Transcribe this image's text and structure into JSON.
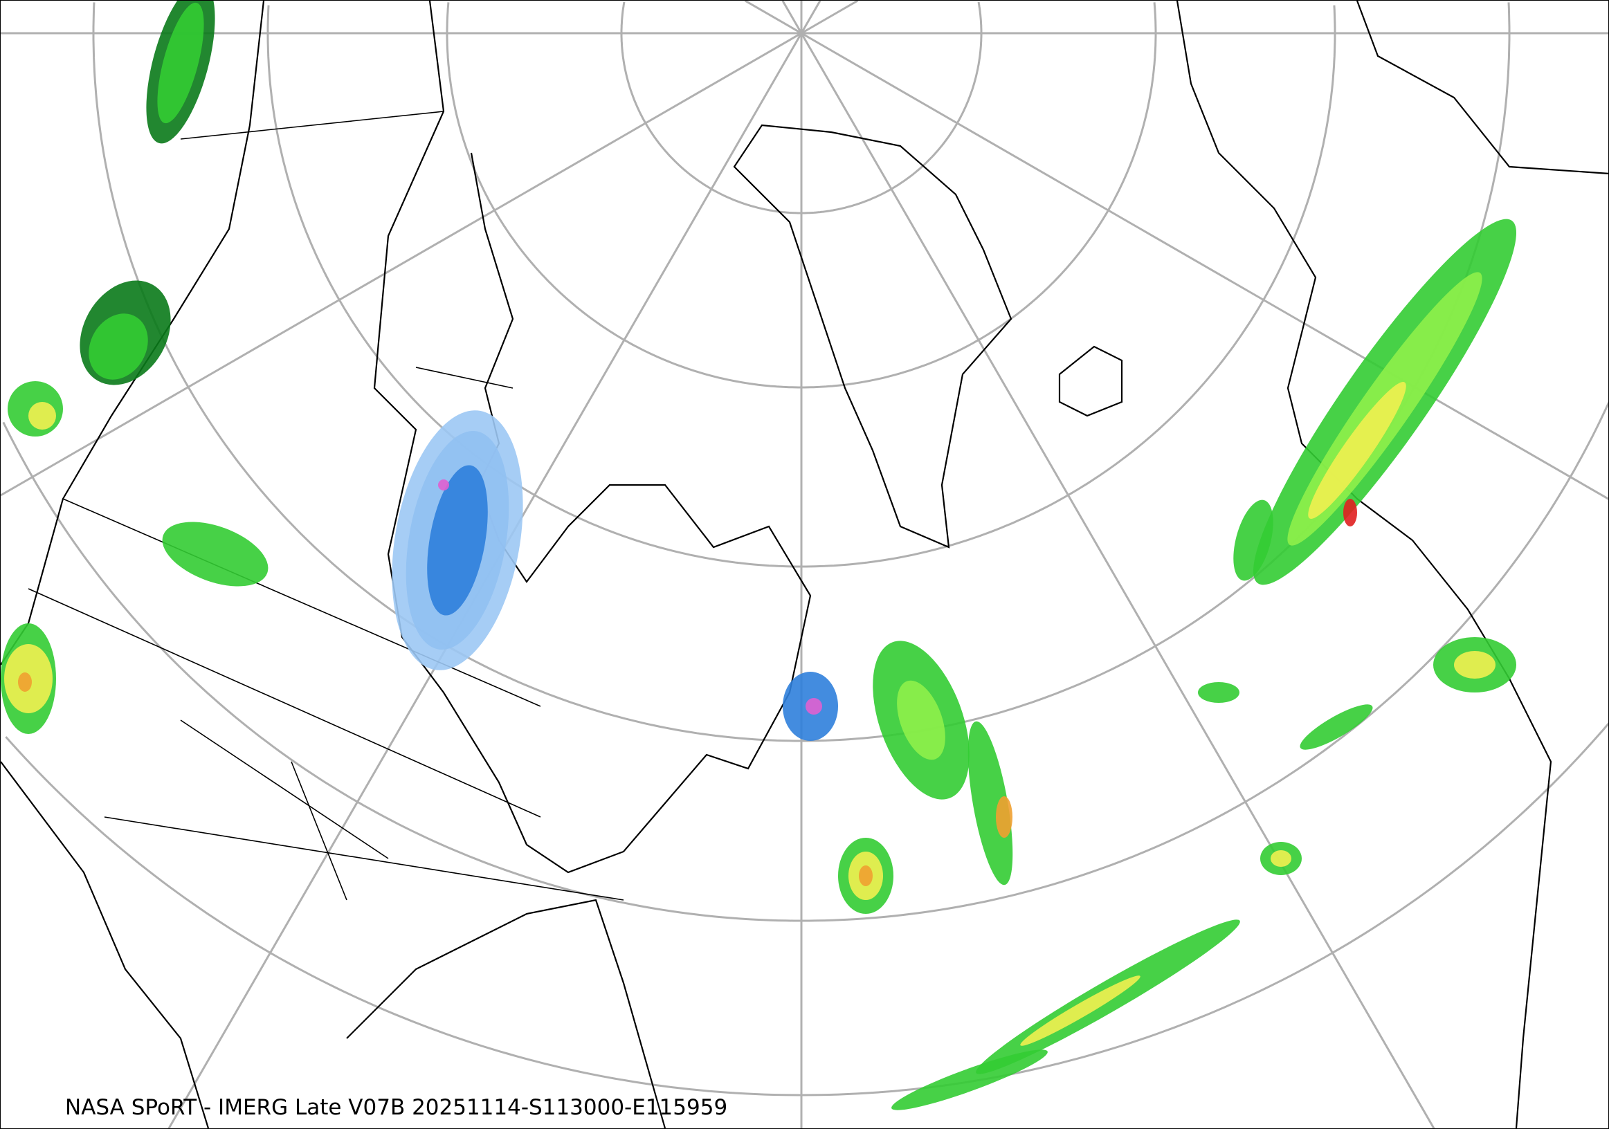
{
  "caption": "NASA SPoRT - IMERG Late V07B 20251114-S113000-E115959",
  "colors": {
    "graticule": "#b0b0b0",
    "coastline": "#000000",
    "precip_light_blue": "#9cc8f4",
    "precip_blue": "#2f7fdc",
    "precip_magenta": "#e060d0",
    "precip_dark_green": "#0a7a1a",
    "precip_green": "#33cc33",
    "precip_light_green": "#8ef04a",
    "precip_yellow": "#f0f050",
    "precip_orange": "#f0a030",
    "precip_red": "#e02020"
  }
}
